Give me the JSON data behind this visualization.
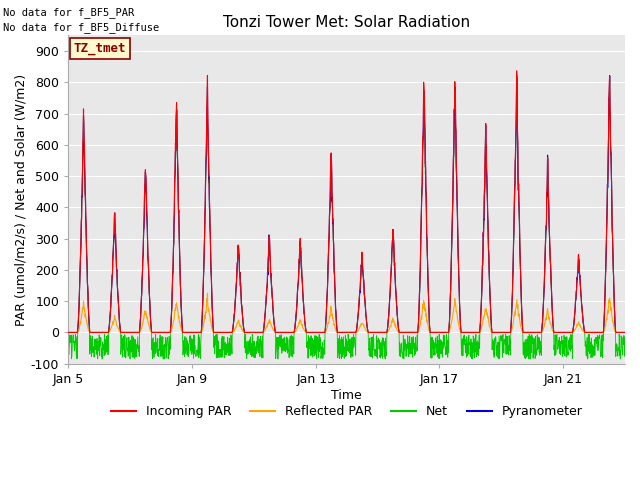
{
  "title": "Tonzi Tower Met: Solar Radiation",
  "xlabel": "Time",
  "ylabel": "PAR (umol/m2/s) / Net and Solar (W/m2)",
  "ylim": [
    -100,
    950
  ],
  "yticks": [
    -100,
    0,
    100,
    200,
    300,
    400,
    500,
    600,
    700,
    800,
    900
  ],
  "xtick_labels": [
    "Jan 5",
    "Jan 9",
    "Jan 13",
    "Jan 17",
    "Jan 21"
  ],
  "no_data_text1": "No data for f_BF5_PAR",
  "no_data_text2": "No data for f_BF5_Diffuse",
  "legend_label_text": "TZ_tmet",
  "legend_box_facecolor": "#fffacd",
  "legend_box_edge_color": "#8b0000",
  "legend_text_color": "#8b0000",
  "colors": {
    "incoming_par": "#ff0000",
    "reflected_par": "#ffa500",
    "net": "#00cc00",
    "pyranometer": "#0000dd"
  },
  "legend_entries": [
    "Incoming PAR",
    "Reflected PAR",
    "Net",
    "Pyranometer"
  ],
  "fig_bg": "#ffffff",
  "plot_bg": "#e8e8e8",
  "grid_color": "#ffffff",
  "n_points": 2000,
  "days": 18,
  "start_day": 4,
  "day_peaks": [
    710,
    380,
    555,
    750,
    800,
    290,
    310,
    295,
    580,
    255,
    335,
    810,
    820,
    660,
    810,
    540,
    260,
    850
  ]
}
